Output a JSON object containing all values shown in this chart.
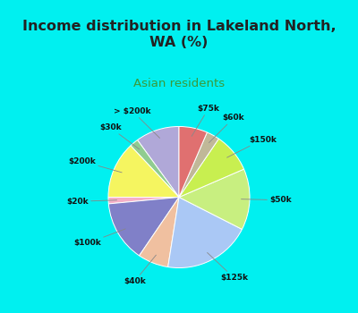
{
  "title": "Income distribution in Lakeland North,\nWA (%)",
  "subtitle": "Asian residents",
  "labels": [
    "> $200k",
    "$30k",
    "$200k",
    "$20k",
    "$100k",
    "$40k",
    "$125k",
    "$50k",
    "$150k",
    "$60k",
    "$75k"
  ],
  "sizes": [
    10,
    2,
    13,
    1.5,
    14,
    7,
    20,
    14,
    9,
    3,
    6.5
  ],
  "colors": [
    "#b0a8d8",
    "#90cc90",
    "#f5f560",
    "#f5b0c8",
    "#8080c8",
    "#f0c0a0",
    "#aac8f5",
    "#c8ef80",
    "#c8ef50",
    "#c0b898",
    "#e07070"
  ],
  "bg_cyan": "#00f0f0",
  "bg_chart": "#dff5e8",
  "title_color": "#222222",
  "subtitle_color": "#3a9a3a",
  "startangle": 90
}
